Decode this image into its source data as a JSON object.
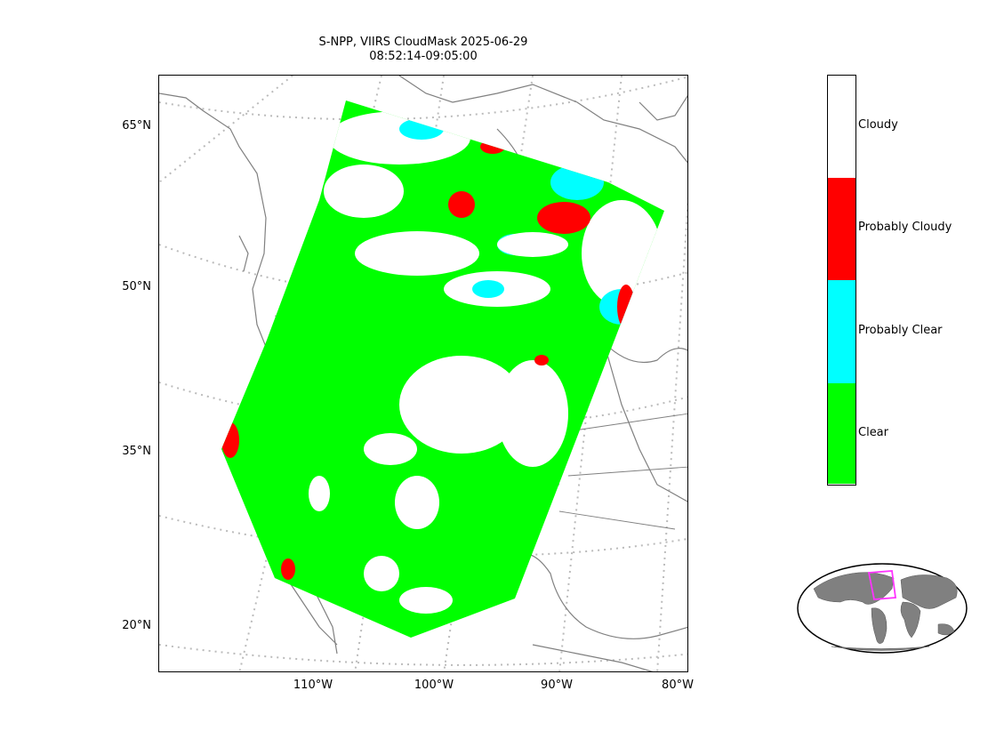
{
  "title": {
    "line1": "S-NPP, VIIRS CloudMask 2025-06-29",
    "line2": "08:52:14-09:05:00"
  },
  "axes": {
    "lat_labels": [
      "65°N",
      "50°N",
      "35°N",
      "20°N"
    ],
    "lon_labels": [
      "110°W",
      "100°W",
      "90°W",
      "80°W"
    ]
  },
  "colorbar": {
    "categories": [
      {
        "label": "Cloudy",
        "color": "#ffffff"
      },
      {
        "label": "Probably Cloudy",
        "color": "#ff0000"
      },
      {
        "label": "Probably Clear",
        "color": "#00ffff"
      },
      {
        "label": "Clear",
        "color": "#00ff00"
      }
    ]
  },
  "colors": {
    "coastline": "#808080",
    "graticule": "#bbbbbb",
    "inset_land": "#808080",
    "inset_box": "#ff33ff"
  }
}
